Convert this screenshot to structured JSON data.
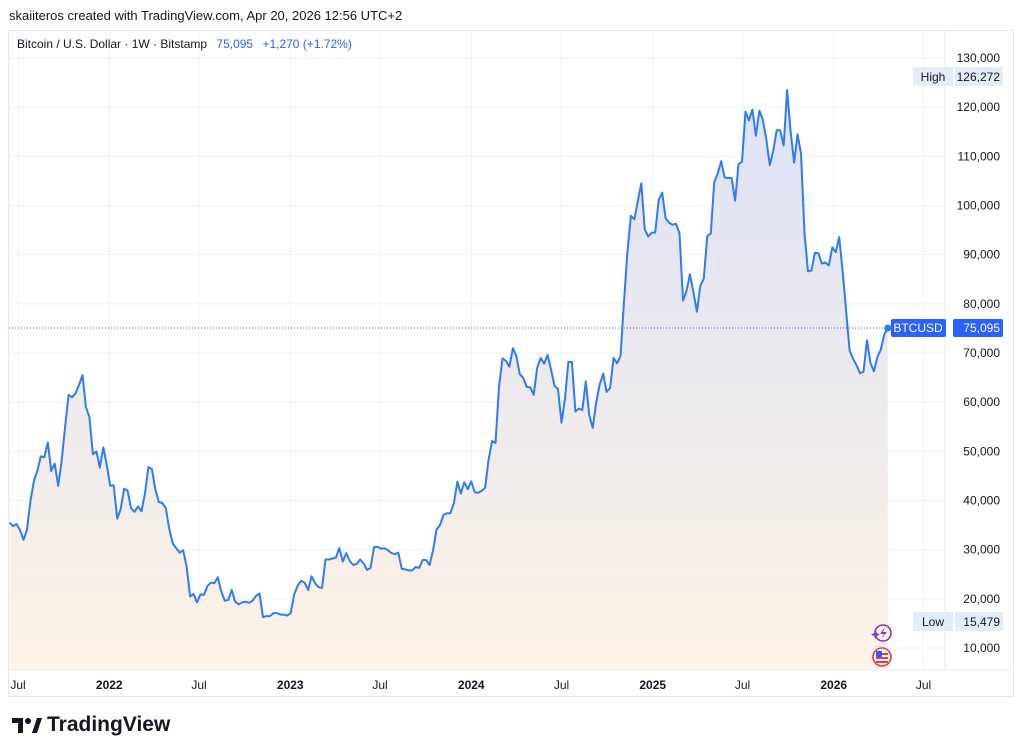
{
  "credit": "skaiiteros created with TradingView.com, Apr 20, 2026 12:56 UTC+2",
  "legend": {
    "symbol": "Bitcoin / U.S. Dollar · 1W · Bitstamp",
    "price": "75,095",
    "change": "+1,270 (+1.72%)"
  },
  "markers": {
    "high_label": "High",
    "high_value": "126,272",
    "low_label": "Low",
    "low_value": "15,479",
    "ticker_label": "BTCUSD",
    "ticker_value": "75,095"
  },
  "logo": "TradingView",
  "colors": {
    "line": "#2f7bf5",
    "accent": "#2962ff",
    "fill_top": "#dde2f6",
    "fill_bottom": "#fdf3e6",
    "marker_bg": "#e3ecfb"
  },
  "chart_data": {
    "type": "area",
    "title": "Bitcoin / U.S. Dollar · 1W · Bitstamp",
    "xlabel": "",
    "ylabel": "",
    "ylim": [
      10000,
      130000
    ],
    "y_ticks": [
      "130,000",
      "120,000",
      "110,000",
      "100,000",
      "90,000",
      "80,000",
      "70,000",
      "60,000",
      "50,000",
      "40,000",
      "30,000",
      "20,000",
      "10,000"
    ],
    "x_ticks": [
      {
        "label": "Jul",
        "date": "2021-07-01",
        "bold": false
      },
      {
        "label": "2022",
        "date": "2022-01-01",
        "bold": true
      },
      {
        "label": "Jul",
        "date": "2022-07-01",
        "bold": false
      },
      {
        "label": "2023",
        "date": "2023-01-01",
        "bold": true
      },
      {
        "label": "Jul",
        "date": "2023-07-01",
        "bold": false
      },
      {
        "label": "2024",
        "date": "2024-01-01",
        "bold": true
      },
      {
        "label": "Jul",
        "date": "2024-07-01",
        "bold": false
      },
      {
        "label": "2025",
        "date": "2025-01-01",
        "bold": true
      },
      {
        "label": "Jul",
        "date": "2025-07-01",
        "bold": false
      },
      {
        "label": "2026",
        "date": "2026-01-01",
        "bold": true
      },
      {
        "label": "Jul",
        "date": "2026-07-01",
        "bold": false
      }
    ],
    "grid": true,
    "series": [
      {
        "name": "BTCUSD",
        "points": [
          [
            "2021-06-14",
            35500
          ],
          [
            "2021-06-21",
            34800
          ],
          [
            "2021-06-28",
            35200
          ],
          [
            "2021-07-05",
            34000
          ],
          [
            "2021-07-12",
            32000
          ],
          [
            "2021-07-19",
            34000
          ],
          [
            "2021-07-26",
            39800
          ],
          [
            "2021-08-02",
            44000
          ],
          [
            "2021-08-09",
            46000
          ],
          [
            "2021-08-16",
            49000
          ],
          [
            "2021-08-23",
            48800
          ],
          [
            "2021-08-30",
            51800
          ],
          [
            "2021-09-06",
            46000
          ],
          [
            "2021-09-13",
            47500
          ],
          [
            "2021-09-20",
            43000
          ],
          [
            "2021-09-27",
            48000
          ],
          [
            "2021-10-04",
            55000
          ],
          [
            "2021-10-11",
            61500
          ],
          [
            "2021-10-18",
            61000
          ],
          [
            "2021-10-25",
            61800
          ],
          [
            "2021-11-01",
            63500
          ],
          [
            "2021-11-08",
            65500
          ],
          [
            "2021-11-15",
            59000
          ],
          [
            "2021-11-22",
            57000
          ],
          [
            "2021-11-29",
            49400
          ],
          [
            "2021-12-06",
            50000
          ],
          [
            "2021-12-13",
            46700
          ],
          [
            "2021-12-20",
            50800
          ],
          [
            "2021-12-27",
            47200
          ],
          [
            "2022-01-03",
            43000
          ],
          [
            "2022-01-10",
            43100
          ],
          [
            "2022-01-17",
            36300
          ],
          [
            "2022-01-24",
            38200
          ],
          [
            "2022-01-31",
            42400
          ],
          [
            "2022-02-07",
            42000
          ],
          [
            "2022-02-14",
            38400
          ],
          [
            "2022-02-21",
            37700
          ],
          [
            "2022-02-28",
            38800
          ],
          [
            "2022-03-07",
            37800
          ],
          [
            "2022-03-14",
            41300
          ],
          [
            "2022-03-21",
            46800
          ],
          [
            "2022-03-28",
            46400
          ],
          [
            "2022-04-04",
            42200
          ],
          [
            "2022-04-11",
            39700
          ],
          [
            "2022-04-18",
            39500
          ],
          [
            "2022-04-25",
            38500
          ],
          [
            "2022-05-02",
            34300
          ],
          [
            "2022-05-09",
            31300
          ],
          [
            "2022-05-16",
            30300
          ],
          [
            "2022-05-23",
            29400
          ],
          [
            "2022-05-30",
            29900
          ],
          [
            "2022-06-06",
            26600
          ],
          [
            "2022-06-13",
            20500
          ],
          [
            "2022-06-20",
            21000
          ],
          [
            "2022-06-27",
            19300
          ],
          [
            "2022-07-04",
            20900
          ],
          [
            "2022-07-11",
            20800
          ],
          [
            "2022-07-18",
            22600
          ],
          [
            "2022-07-25",
            23300
          ],
          [
            "2022-08-01",
            23200
          ],
          [
            "2022-08-08",
            24400
          ],
          [
            "2022-08-15",
            21500
          ],
          [
            "2022-08-22",
            19600
          ],
          [
            "2022-08-29",
            19800
          ],
          [
            "2022-09-05",
            21800
          ],
          [
            "2022-09-12",
            19400
          ],
          [
            "2022-09-19",
            18900
          ],
          [
            "2022-09-26",
            19300
          ],
          [
            "2022-10-03",
            19400
          ],
          [
            "2022-10-10",
            19200
          ],
          [
            "2022-10-17",
            19600
          ],
          [
            "2022-10-24",
            20600
          ],
          [
            "2022-10-31",
            21100
          ],
          [
            "2022-11-07",
            16300
          ],
          [
            "2022-11-14",
            16500
          ],
          [
            "2022-11-21",
            16500
          ],
          [
            "2022-11-28",
            17100
          ],
          [
            "2022-12-05",
            17100
          ],
          [
            "2022-12-12",
            16800
          ],
          [
            "2022-12-19",
            16800
          ],
          [
            "2022-12-26",
            16600
          ],
          [
            "2023-01-02",
            17100
          ],
          [
            "2023-01-09",
            20900
          ],
          [
            "2023-01-16",
            22700
          ],
          [
            "2023-01-23",
            23700
          ],
          [
            "2023-01-30",
            23300
          ],
          [
            "2023-02-06",
            21800
          ],
          [
            "2023-02-13",
            24600
          ],
          [
            "2023-02-20",
            23200
          ],
          [
            "2023-02-27",
            22400
          ],
          [
            "2023-03-06",
            22200
          ],
          [
            "2023-03-13",
            28000
          ],
          [
            "2023-03-20",
            28000
          ],
          [
            "2023-03-27",
            28200
          ],
          [
            "2023-04-03",
            28400
          ],
          [
            "2023-04-10",
            30300
          ],
          [
            "2023-04-17",
            27600
          ],
          [
            "2023-04-24",
            29300
          ],
          [
            "2023-05-01",
            27700
          ],
          [
            "2023-05-08",
            26900
          ],
          [
            "2023-05-15",
            27100
          ],
          [
            "2023-05-22",
            28000
          ],
          [
            "2023-05-29",
            27200
          ],
          [
            "2023-06-05",
            25900
          ],
          [
            "2023-06-12",
            26300
          ],
          [
            "2023-06-19",
            30500
          ],
          [
            "2023-06-26",
            30600
          ],
          [
            "2023-07-03",
            30200
          ],
          [
            "2023-07-10",
            30300
          ],
          [
            "2023-07-17",
            29900
          ],
          [
            "2023-07-24",
            29300
          ],
          [
            "2023-07-31",
            29100
          ],
          [
            "2023-08-07",
            29400
          ],
          [
            "2023-08-14",
            26100
          ],
          [
            "2023-08-21",
            26000
          ],
          [
            "2023-08-28",
            25800
          ],
          [
            "2023-09-04",
            25800
          ],
          [
            "2023-09-11",
            26500
          ],
          [
            "2023-09-18",
            26300
          ],
          [
            "2023-09-25",
            27900
          ],
          [
            "2023-10-02",
            27900
          ],
          [
            "2023-10-09",
            26900
          ],
          [
            "2023-10-16",
            29900
          ],
          [
            "2023-10-23",
            34100
          ],
          [
            "2023-10-30",
            35000
          ],
          [
            "2023-11-06",
            37100
          ],
          [
            "2023-11-13",
            37400
          ],
          [
            "2023-11-20",
            37400
          ],
          [
            "2023-11-27",
            39500
          ],
          [
            "2023-12-04",
            43800
          ],
          [
            "2023-12-11",
            41400
          ],
          [
            "2023-12-18",
            43700
          ],
          [
            "2023-12-25",
            42300
          ],
          [
            "2024-01-01",
            43900
          ],
          [
            "2024-01-08",
            41700
          ],
          [
            "2024-01-15",
            41600
          ],
          [
            "2024-01-22",
            42000
          ],
          [
            "2024-01-29",
            42600
          ],
          [
            "2024-02-05",
            48300
          ],
          [
            "2024-02-12",
            52100
          ],
          [
            "2024-02-19",
            51700
          ],
          [
            "2024-02-26",
            63100
          ],
          [
            "2024-03-04",
            68900
          ],
          [
            "2024-03-11",
            68400
          ],
          [
            "2024-03-18",
            67200
          ],
          [
            "2024-03-25",
            71000
          ],
          [
            "2024-04-01",
            69300
          ],
          [
            "2024-04-08",
            65700
          ],
          [
            "2024-04-15",
            64900
          ],
          [
            "2024-04-22",
            63100
          ],
          [
            "2024-04-29",
            63000
          ],
          [
            "2024-05-06",
            61500
          ],
          [
            "2024-05-13",
            67000
          ],
          [
            "2024-05-20",
            69000
          ],
          [
            "2024-05-27",
            67800
          ],
          [
            "2024-06-03",
            69600
          ],
          [
            "2024-06-10",
            66600
          ],
          [
            "2024-06-17",
            63300
          ],
          [
            "2024-06-24",
            62700
          ],
          [
            "2024-07-01",
            55800
          ],
          [
            "2024-07-08",
            60800
          ],
          [
            "2024-07-15",
            68200
          ],
          [
            "2024-07-22",
            68200
          ],
          [
            "2024-07-29",
            58100
          ],
          [
            "2024-08-05",
            58700
          ],
          [
            "2024-08-12",
            58400
          ],
          [
            "2024-08-19",
            64200
          ],
          [
            "2024-08-26",
            57300
          ],
          [
            "2024-09-02",
            54800
          ],
          [
            "2024-09-09",
            60000
          ],
          [
            "2024-09-16",
            63600
          ],
          [
            "2024-09-23",
            65800
          ],
          [
            "2024-09-30",
            62100
          ],
          [
            "2024-10-07",
            62900
          ],
          [
            "2024-10-14",
            69000
          ],
          [
            "2024-10-21",
            67900
          ],
          [
            "2024-10-28",
            69400
          ],
          [
            "2024-11-04",
            80400
          ],
          [
            "2024-11-11",
            90500
          ],
          [
            "2024-11-18",
            97900
          ],
          [
            "2024-11-25",
            97200
          ],
          [
            "2024-12-02",
            101000
          ],
          [
            "2024-12-09",
            104500
          ],
          [
            "2024-12-16",
            95100
          ],
          [
            "2024-12-23",
            93700
          ],
          [
            "2024-12-30",
            94500
          ],
          [
            "2025-01-06",
            94500
          ],
          [
            "2025-01-13",
            101100
          ],
          [
            "2025-01-20",
            102600
          ],
          [
            "2025-01-27",
            97400
          ],
          [
            "2025-02-03",
            96500
          ],
          [
            "2025-02-10",
            96100
          ],
          [
            "2025-02-17",
            96300
          ],
          [
            "2025-02-24",
            94300
          ],
          [
            "2025-03-03",
            80700
          ],
          [
            "2025-03-10",
            82600
          ],
          [
            "2025-03-17",
            86000
          ],
          [
            "2025-03-24",
            82400
          ],
          [
            "2025-03-31",
            78400
          ],
          [
            "2025-04-07",
            83600
          ],
          [
            "2025-04-14",
            85200
          ],
          [
            "2025-04-21",
            93800
          ],
          [
            "2025-04-28",
            94300
          ],
          [
            "2025-05-05",
            104700
          ],
          [
            "2025-05-12",
            106500
          ],
          [
            "2025-05-19",
            109000
          ],
          [
            "2025-05-26",
            105700
          ],
          [
            "2025-06-02",
            105600
          ],
          [
            "2025-06-09",
            105600
          ],
          [
            "2025-06-16",
            101000
          ],
          [
            "2025-06-23",
            108400
          ],
          [
            "2025-06-30",
            108900
          ],
          [
            "2025-07-07",
            119100
          ],
          [
            "2025-07-14",
            117300
          ],
          [
            "2025-07-21",
            119500
          ],
          [
            "2025-07-28",
            114200
          ],
          [
            "2025-08-04",
            119300
          ],
          [
            "2025-08-11",
            117500
          ],
          [
            "2025-08-18",
            113500
          ],
          [
            "2025-08-25",
            108200
          ],
          [
            "2025-09-01",
            111100
          ],
          [
            "2025-09-08",
            115300
          ],
          [
            "2025-09-15",
            115300
          ],
          [
            "2025-09-22",
            112200
          ],
          [
            "2025-09-29",
            123500
          ],
          [
            "2025-10-06",
            115100
          ],
          [
            "2025-10-13",
            108700
          ],
          [
            "2025-10-20",
            114500
          ],
          [
            "2025-10-27",
            110600
          ],
          [
            "2025-11-03",
            94400
          ],
          [
            "2025-11-10",
            86600
          ],
          [
            "2025-11-17",
            86800
          ],
          [
            "2025-11-24",
            90400
          ],
          [
            "2025-12-01",
            90300
          ],
          [
            "2025-12-08",
            88200
          ],
          [
            "2025-12-15",
            88400
          ],
          [
            "2025-12-22",
            87800
          ],
          [
            "2025-12-29",
            91500
          ],
          [
            "2026-01-05",
            90500
          ],
          [
            "2026-01-12",
            93600
          ],
          [
            "2026-01-19",
            86500
          ],
          [
            "2026-01-26",
            78600
          ],
          [
            "2026-02-02",
            70500
          ],
          [
            "2026-02-09",
            68800
          ],
          [
            "2026-02-16",
            67500
          ],
          [
            "2026-02-23",
            65900
          ],
          [
            "2026-03-02",
            66200
          ],
          [
            "2026-03-09",
            72600
          ],
          [
            "2026-03-16",
            68000
          ],
          [
            "2026-03-23",
            66300
          ],
          [
            "2026-03-30",
            69200
          ],
          [
            "2026-04-06",
            70700
          ],
          [
            "2026-04-13",
            73800
          ],
          [
            "2026-04-20",
            75095
          ]
        ]
      }
    ]
  }
}
